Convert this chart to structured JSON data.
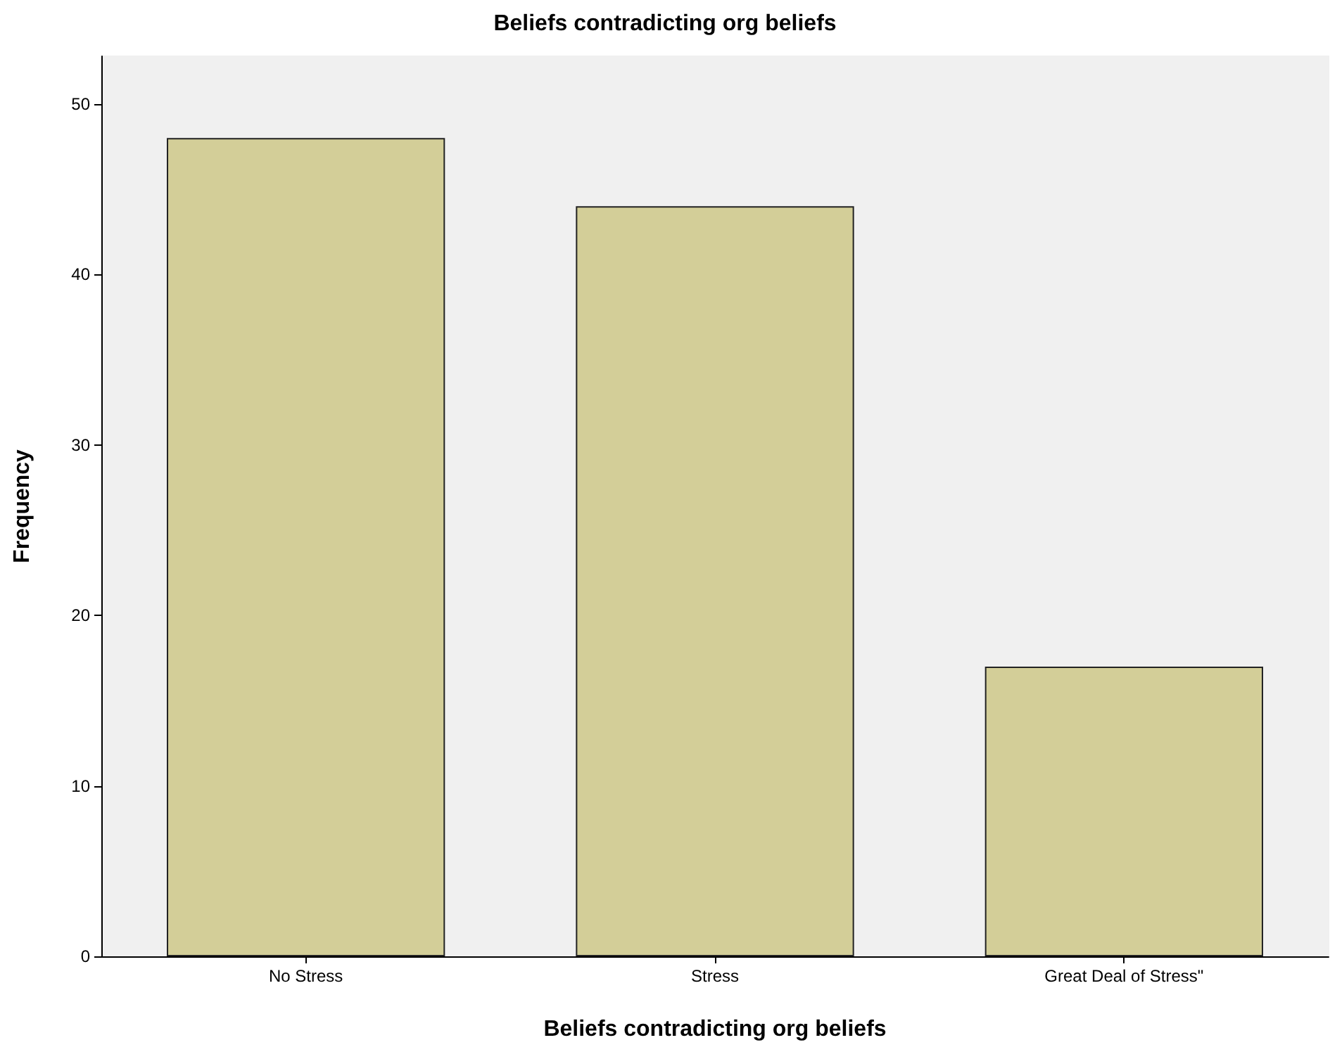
{
  "chart_data": {
    "type": "bar",
    "title": "Beliefs contradicting org beliefs",
    "xlabel": "Beliefs contradicting org beliefs",
    "ylabel": "Frequency",
    "categories": [
      "No Stress",
      "Stress",
      "Great Deal of Stress\""
    ],
    "values": [
      48,
      44,
      17
    ],
    "color": "#d3ce98",
    "ylim": [
      0,
      52.8
    ],
    "yticks": [
      0,
      10,
      20,
      30,
      40,
      50
    ],
    "grid": false
  }
}
